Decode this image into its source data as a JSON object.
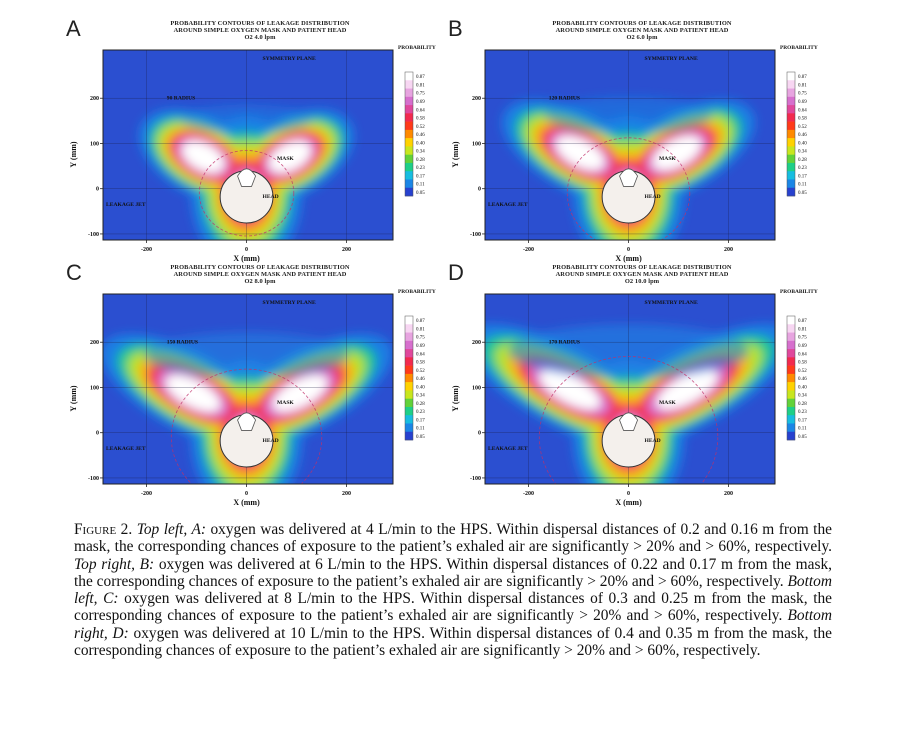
{
  "figure": {
    "panels": [
      {
        "letter": "A",
        "title_lines": [
          "PROBABILITY CONTOURS OF LEAKAGE DISTRIBUTION",
          "AROUND SIMPLE OXYGEN MASK AND PATIENT HEAD",
          "O2 4.0 lpm"
        ],
        "radius_label": "90 RADIUS",
        "flow_lpm": 4,
        "spread": 0.55
      },
      {
        "letter": "B",
        "title_lines": [
          "PROBABILITY CONTOURS OF LEAKAGE DISTRIBUTION",
          "AROUND SIMPLE OXYGEN MASK AND PATIENT HEAD",
          "O2 6.0 lpm"
        ],
        "radius_label": "120 RADIUS",
        "flow_lpm": 6,
        "spread": 0.7
      },
      {
        "letter": "C",
        "title_lines": [
          "PROBABILITY CONTOURS OF LEAKAGE DISTRIBUTION",
          "AROUND SIMPLE OXYGEN MASK AND PATIENT HEAD",
          "O2 8.0 lpm"
        ],
        "radius_label": "150 RADIUS",
        "flow_lpm": 8,
        "spread": 0.85
      },
      {
        "letter": "D",
        "title_lines": [
          "PROBABILITY CONTOURS OF LEAKAGE DISTRIBUTION",
          "AROUND SIMPLE OXYGEN MASK AND PATIENT HEAD",
          "O2 10.0 lpm"
        ],
        "radius_label": "170 RADIUS",
        "flow_lpm": 10,
        "spread": 1.0
      }
    ],
    "labels": {
      "symmetry_plane": "SYMMETRY PLANE",
      "mask": "MASK",
      "head": "HEAD",
      "leakage_jet": "LEAKAGE JET",
      "probability": "PROBABILITY",
      "x_axis": "X (mm)",
      "y_axis": "Y (mm)"
    },
    "x_ticks": [
      "-200",
      "0",
      "200"
    ],
    "y_ticks": [
      "200",
      "100",
      "0",
      "-100"
    ],
    "colorbar_levels": [
      "0.87",
      "0.81",
      "0.75",
      "0.69",
      "0.64",
      "0.58",
      "0.52",
      "0.46",
      "0.40",
      "0.34",
      "0.28",
      "0.23",
      "0.17",
      "0.11",
      "0.05"
    ],
    "colorbar_colors": [
      "#ffffff",
      "#f7d6f2",
      "#e7a4e0",
      "#d66fcd",
      "#e0489c",
      "#f22a4e",
      "#ff3a1a",
      "#ff8a00",
      "#ffd200",
      "#c8e61e",
      "#62d239",
      "#1ecf88",
      "#17bde0",
      "#1b86e6",
      "#2741cf"
    ]
  },
  "caption": {
    "label": "Figure 2.",
    "segments": [
      {
        "style": "italic",
        "text": "Top left, A:"
      },
      {
        "style": "normal",
        "text": " oxygen was delivered at 4 L/min to the HPS. Within dispersal distances of 0.2 and 0.16 m from the mask, the corresponding chances of exposure to the patient’s exhaled air are significantly > 20% and > 60%, respectively. "
      },
      {
        "style": "italic",
        "text": "Top right, B:"
      },
      {
        "style": "normal",
        "text": " oxygen was delivered at 6 L/min to the HPS. Within dispersal distances of 0.22 and 0.17 m from the mask, the corresponding chances of exposure to the patient’s exhaled air are significantly > 20% and > 60%, respectively. "
      },
      {
        "style": "italic",
        "text": "Bottom left, C:"
      },
      {
        "style": "normal",
        "text": " oxygen was delivered at 8 L/min to the HPS. Within dispersal distances of 0.3 and 0.25 m from the mask, the corresponding chances of exposure to the patient’s exhaled air are significantly > 20% and > 60%, respectively. "
      },
      {
        "style": "italic",
        "text": "Bottom right, D:"
      },
      {
        "style": "normal",
        "text": " oxygen was delivered at 10 L/min to the HPS. Within dispersal distances of 0.4 and 0.35 m from the mask, the corresponding chances of exposure to the patient’s exhaled air are significantly > 20% and > 60%, respectively."
      }
    ]
  }
}
